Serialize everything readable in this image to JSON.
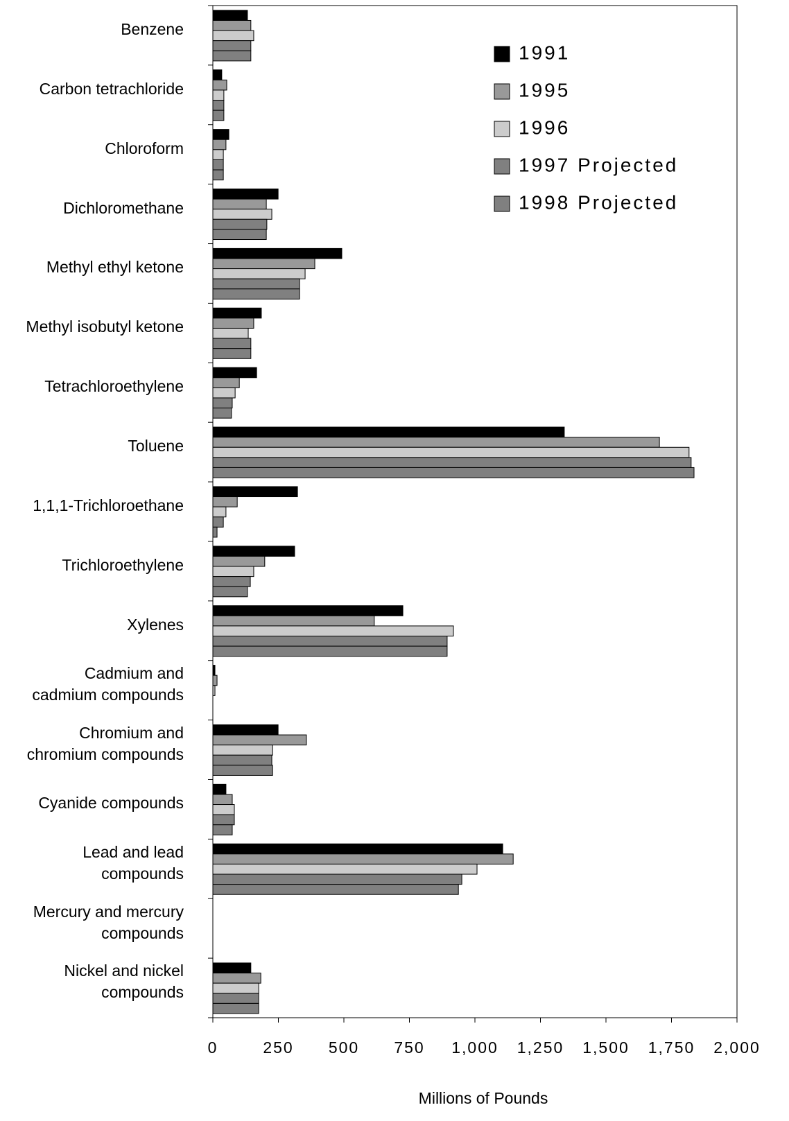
{
  "chart_data": {
    "type": "hbar",
    "x_label": "Millions of Pounds",
    "categories": [
      "Benzene",
      "Carbon tetrachloride",
      "Chloroform",
      "Dichloromethane",
      "Methyl ethyl ketone",
      "Methyl isobutyl ketone",
      "Tetrachloroethylene",
      "Toluene",
      "1,1,1-Trichloroethane",
      "Trichloroethylene",
      "Xylenes",
      "Cadmium and\ncadmium compounds",
      "Chromium and\nchromium compounds",
      "Cyanide compounds",
      "Lead and lead\ncompounds",
      "Mercury and mercury\ncompounds",
      "Nickel and nickel\ncompounds"
    ],
    "series": [
      {
        "name": "1991",
        "color": "#000000",
        "values": [
          132,
          34,
          61,
          249,
          492,
          185,
          167,
          1341,
          323,
          312,
          725,
          8,
          249,
          50,
          1106,
          null,
          145
        ]
      },
      {
        "name": "1995",
        "color": "#999999",
        "values": [
          145,
          53,
          50,
          204,
          389,
          156,
          101,
          1704,
          93,
          198,
          616,
          16,
          357,
          74,
          1146,
          null,
          183
        ]
      },
      {
        "name": "1996",
        "color": "#cccccc",
        "values": [
          156,
          42,
          40,
          225,
          352,
          135,
          85,
          1817,
          50,
          156,
          918,
          8,
          228,
          82,
          1008,
          null,
          175
        ]
      },
      {
        "name": "1997 Projected",
        "color": "#808080",
        "values": [
          145,
          42,
          40,
          206,
          331,
          145,
          74,
          1825,
          40,
          143,
          894,
          null,
          225,
          82,
          950,
          null,
          175
        ]
      },
      {
        "name": "1998 Projected",
        "color": "#808080",
        "values": [
          145,
          42,
          40,
          204,
          331,
          145,
          71,
          1836,
          16,
          132,
          894,
          null,
          228,
          74,
          937,
          null,
          175
        ]
      }
    ],
    "xlim": [
      0,
      2000
    ],
    "xticks": [
      0,
      250,
      500,
      750,
      {
        "value": 1000,
        "label": "1,000"
      },
      {
        "value": 1250,
        "label": "1,250"
      },
      {
        "value": 1500,
        "label": "1,500"
      },
      {
        "value": 1750,
        "label": "1,750"
      },
      {
        "value": 2000,
        "label": "2,000"
      }
    ],
    "legend": "upper right"
  }
}
